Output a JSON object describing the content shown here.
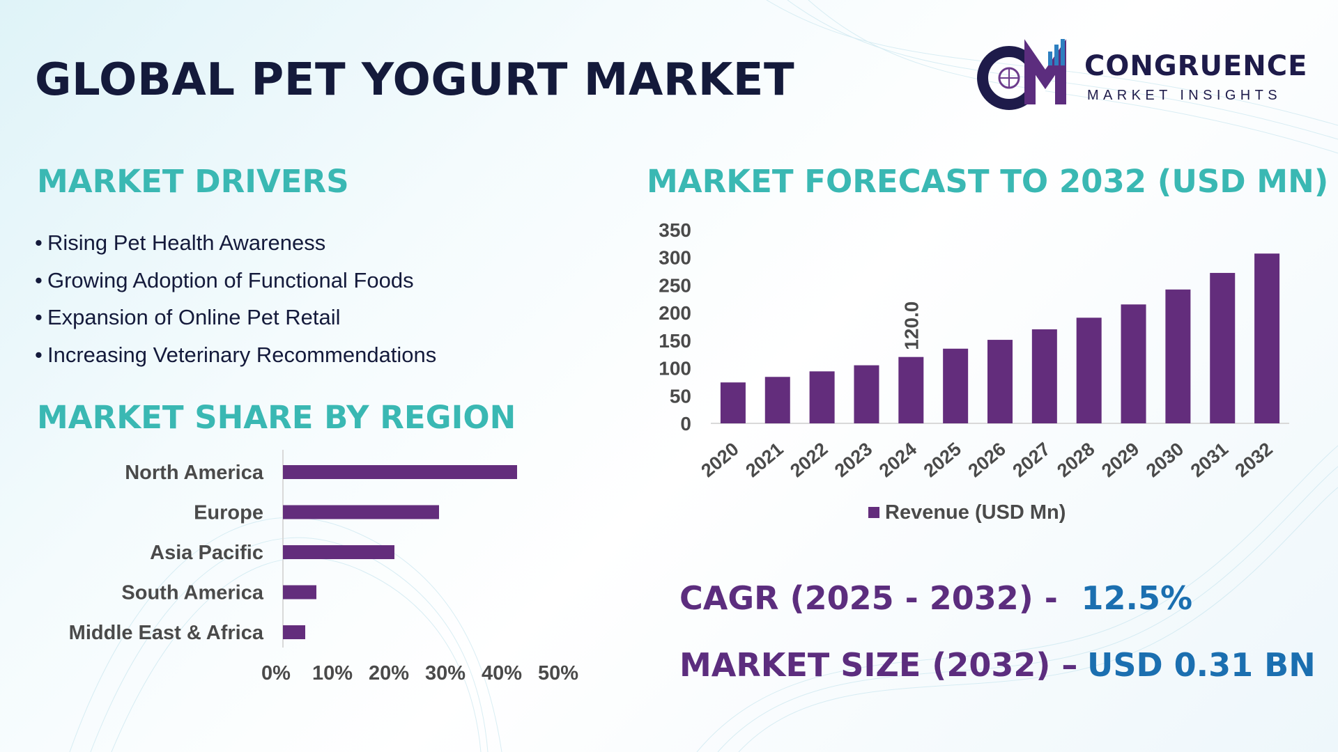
{
  "title": "GLOBAL PET YOGURT MARKET",
  "logo": {
    "name": "CONGRUENCE",
    "tagline": "MARKET INSIGHTS",
    "monogram": "CM"
  },
  "drivers": {
    "heading": "MARKET DRIVERS",
    "items": [
      "Rising Pet Health Awareness",
      "Growing Adoption of Functional Foods",
      "Expansion of Online Pet Retail",
      "Increasing Veterinary Recommendations"
    ]
  },
  "region": {
    "heading": "MARKET SHARE BY REGION"
  },
  "forecast": {
    "heading": "MARKET FORECAST TO 2032 (USD MN)"
  },
  "kpis": {
    "cagr_label": "CAGR (2025 - 2032) -",
    "cagr_value": "12.5%",
    "size_label": "MARKET SIZE (2032) –",
    "size_value": "USD 0.31 BN"
  },
  "colors": {
    "bar": "#632d7c",
    "title": "#141a3b",
    "section": "#3ab8b3",
    "kpi_label": "#5c2d7e",
    "kpi_value": "#1b6fb0"
  },
  "chart_data": [
    {
      "type": "bar",
      "orientation": "vertical",
      "categories": [
        "2020",
        "2021",
        "2022",
        "2023",
        "2024",
        "2025",
        "2026",
        "2027",
        "2028",
        "2029",
        "2030",
        "2031",
        "2032"
      ],
      "series": [
        {
          "name": "Revenue (USD Mn)",
          "values": [
            74,
            84,
            94,
            105,
            120,
            135,
            151,
            170,
            191,
            215,
            242,
            272,
            307
          ]
        }
      ],
      "data_labels": [
        {
          "index": 4,
          "text": "120.0"
        }
      ],
      "ylim": [
        0,
        350
      ],
      "yticks": [
        "0",
        "50",
        "100",
        "150",
        "200",
        "250",
        "300",
        "350"
      ],
      "legend": "bottom",
      "grid": false
    },
    {
      "type": "bar",
      "orientation": "horizontal",
      "categories": [
        "North America",
        "Europe",
        "Asia Pacific",
        "South America",
        "Middle East & Africa"
      ],
      "values": [
        0.42,
        0.28,
        0.2,
        0.06,
        0.04
      ],
      "xlim": [
        0,
        0.5
      ],
      "xticks": [
        "0%",
        "10%",
        "20%",
        "30%",
        "40%",
        "50%"
      ],
      "grid": false
    }
  ]
}
